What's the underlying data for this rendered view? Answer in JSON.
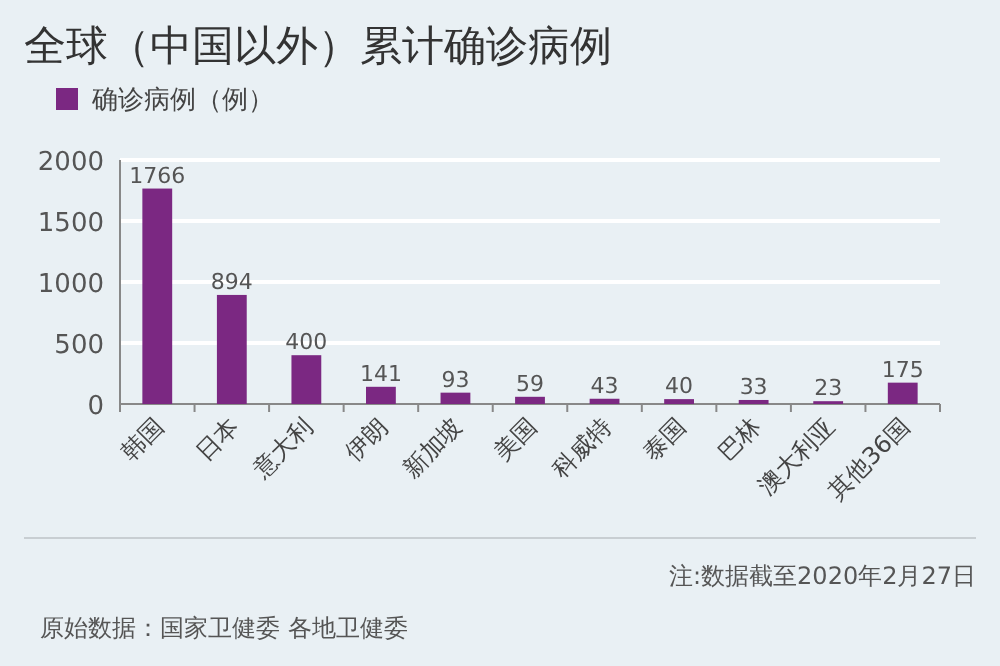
{
  "chart_data": {
    "type": "bar",
    "title": "全球（中国以外）累计确诊病例",
    "categories": [
      "韩国",
      "日本",
      "意大利",
      "伊朗",
      "新加坡",
      "美国",
      "科威特",
      "泰国",
      "巴林",
      "澳大利亚",
      "其他36国"
    ],
    "series": [
      {
        "name": "确诊病例（例）",
        "color": "#7b2882",
        "values": [
          1766,
          894,
          400,
          141,
          93,
          59,
          43,
          40,
          33,
          23,
          175
        ]
      }
    ],
    "data_labels": true,
    "ylim": [
      0,
      2000
    ],
    "yticks": [
      0,
      500,
      1000,
      1500,
      2000
    ],
    "grid": "y",
    "legend": "top left",
    "annotations": [
      "注:数据截至2020年2月27日",
      "原始数据：国家卫健委 各地卫健委"
    ]
  }
}
